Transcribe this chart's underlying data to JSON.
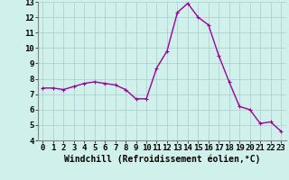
{
  "x": [
    0,
    1,
    2,
    3,
    4,
    5,
    6,
    7,
    8,
    9,
    10,
    11,
    12,
    13,
    14,
    15,
    16,
    17,
    18,
    19,
    20,
    21,
    22,
    23
  ],
  "y": [
    7.4,
    7.4,
    7.3,
    7.5,
    7.7,
    7.8,
    7.7,
    7.6,
    7.3,
    6.7,
    6.7,
    8.7,
    9.8,
    12.3,
    12.9,
    12.0,
    11.5,
    9.5,
    7.8,
    6.2,
    6.0,
    5.1,
    5.2,
    4.6
  ],
  "line_color": "#990099",
  "marker": "+",
  "markersize": 3,
  "linewidth": 1.0,
  "background_color": "#cff0eb",
  "grid_color": "#aacccc",
  "xlabel": "Windchill (Refroidissement éolien,°C)",
  "xlabel_fontsize": 7,
  "xlim": [
    -0.5,
    23.5
  ],
  "ylim": [
    4,
    13
  ],
  "yticks": [
    4,
    5,
    6,
    7,
    8,
    9,
    10,
    11,
    12,
    13
  ],
  "xticks": [
    0,
    1,
    2,
    3,
    4,
    5,
    6,
    7,
    8,
    9,
    10,
    11,
    12,
    13,
    14,
    15,
    16,
    17,
    18,
    19,
    20,
    21,
    22,
    23
  ],
  "tick_fontsize": 6.5,
  "fig_width": 3.2,
  "fig_height": 2.0,
  "dpi": 100
}
